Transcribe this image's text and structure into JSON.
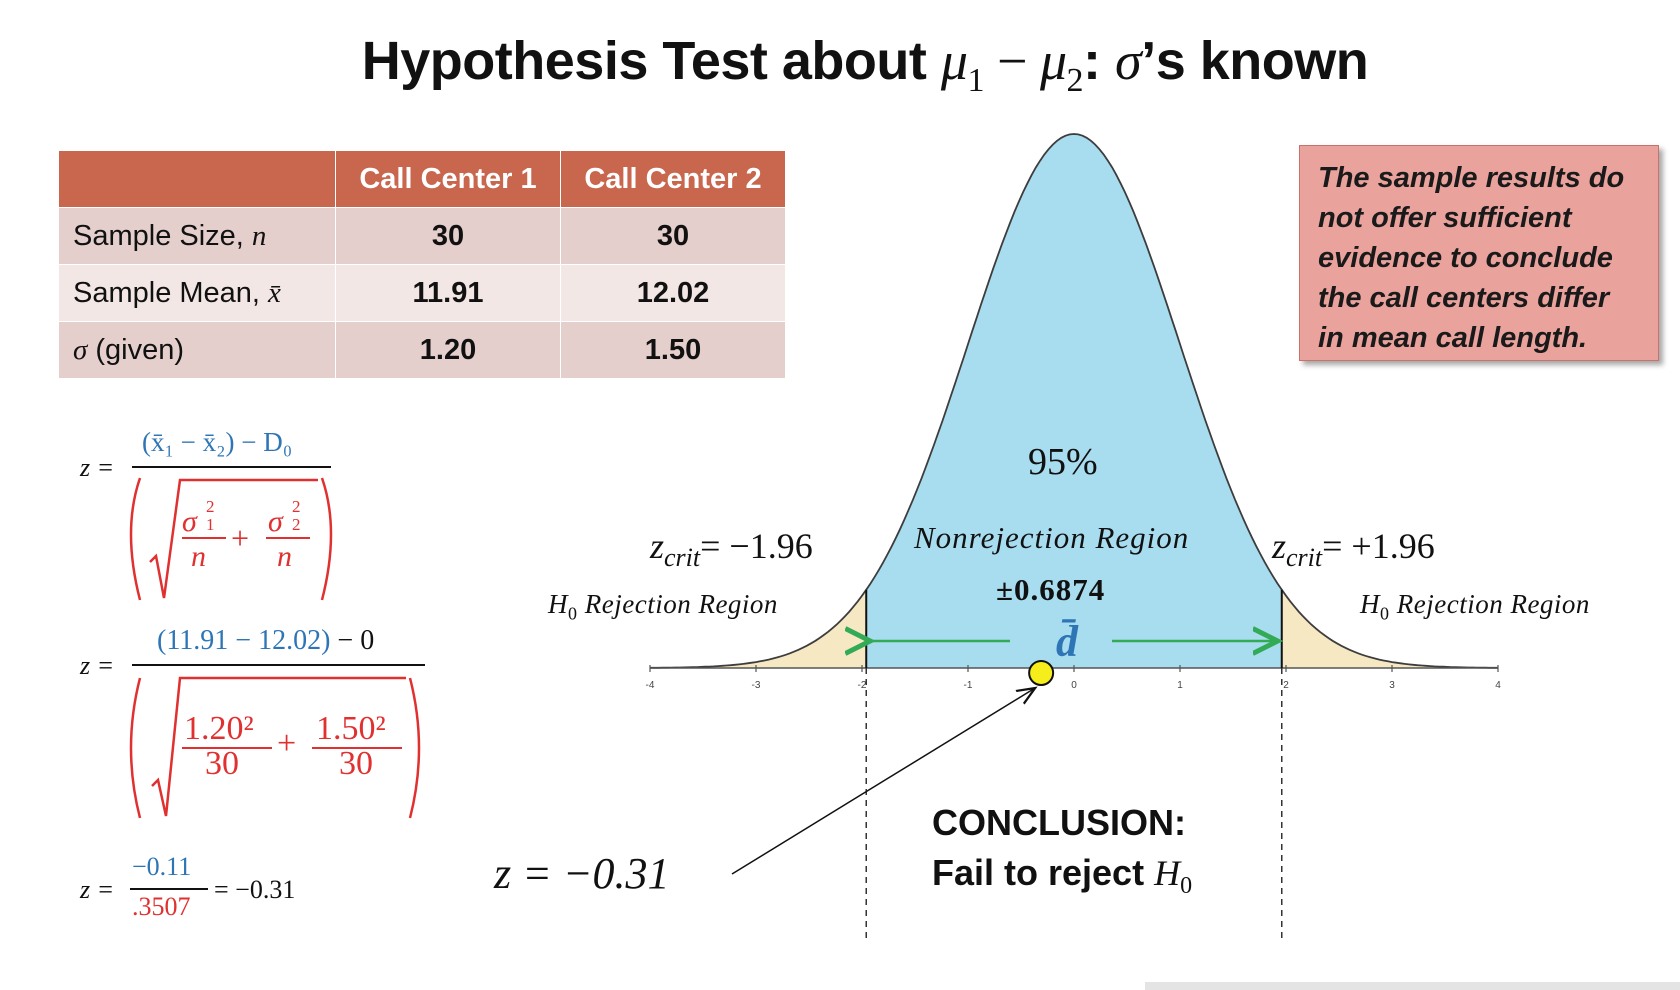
{
  "title": {
    "prefix": "Hypothesis Test about ",
    "math": "μ",
    "sub1": "1",
    "minus": " − ",
    "math2": "μ",
    "sub2": "2",
    "suffix_colon": ": ",
    "sigma": "σ",
    "suffix": "’s known"
  },
  "table": {
    "headers": [
      "",
      "Call Center 1",
      "Call Center 2"
    ],
    "rows": [
      {
        "label": "Sample Size, ",
        "label_var": "n",
        "v1": "30",
        "v2": "30"
      },
      {
        "label": "Sample Mean, ",
        "label_var": "x̄",
        "v1": "11.91",
        "v2": "12.02"
      },
      {
        "label_var": "σ",
        "label": " (given)",
        "v1": "1.20",
        "v2": "1.50"
      }
    ]
  },
  "callout": {
    "text": "The sample results do not offer sufficient evidence to conclude the call centers differ in mean call length."
  },
  "formulas": {
    "f1": {
      "lhs": "z =",
      "num": "(x̄₁ − x̄₂) − D₀",
      "den_a": "σ",
      "den_a_sup": "2",
      "den_a_sub": "1",
      "den_b": "σ",
      "den_b_sup": "2",
      "den_b_sub": "2",
      "den_n": "n",
      "plus": "+"
    },
    "f2": {
      "lhs": "z =",
      "num_blue": "(11.91 − 12.02)",
      "num_rest": " − 0",
      "a": "1.20²",
      "b": "1.50²",
      "n": "30",
      "plus": "+"
    },
    "f3": {
      "lhs": "z =",
      "num": "−0.11",
      "den": ".3507",
      "rhs": "= −0.31"
    }
  },
  "chart": {
    "percent": "95%",
    "nonrejection": "Nonrejection Region",
    "margin": "±0.6874",
    "dbar": "d̄",
    "zcrit_left": "= −1.96",
    "zcrit_right": "= +1.96",
    "zcrit_var": "z",
    "zcrit_sub": "crit",
    "rej_h": "H",
    "rej_sub": "0",
    "rej_text": " Rejection Region",
    "ticks": [
      "-4",
      "-3",
      "-2",
      "-1",
      "0",
      "1",
      "2",
      "3",
      "4"
    ],
    "z_value_label": "z = −0.31",
    "conclusion_title": "CONCLUSION:",
    "conclusion_text": "Fail to reject ",
    "conclusion_h": "H",
    "conclusion_sub": "0",
    "colors": {
      "curve_fill": "#a8dcef",
      "tail_fill": "#f6e8c3",
      "arrow": "#33aa55",
      "dot": "#f5ee1a",
      "dbar": "#2e75b6"
    }
  }
}
